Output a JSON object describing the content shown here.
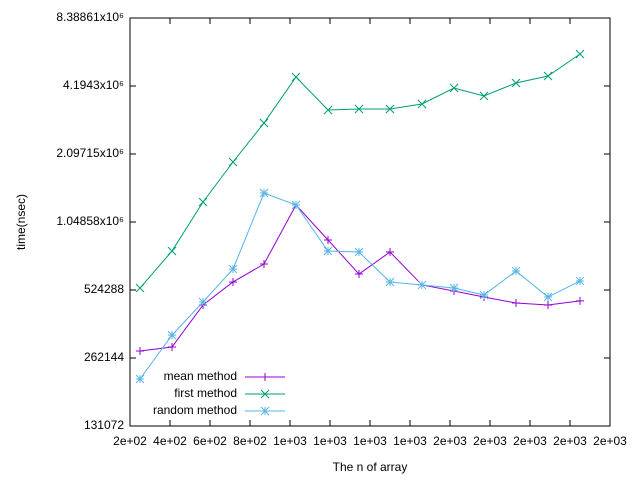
{
  "chart_data": {
    "type": "line",
    "x_label": "The n of array",
    "y_label": "time(nsec)",
    "yscale": "log",
    "legend": "lower left",
    "xlim": [
      200,
      2600
    ],
    "xticks": [
      {
        "value": 200,
        "label": "2e+02"
      },
      {
        "value": 400,
        "label": "4e+02"
      },
      {
        "value": 600,
        "label": "6e+02"
      },
      {
        "value": 800,
        "label": "8e+02"
      },
      {
        "value": 1000,
        "label": "1e+03"
      },
      {
        "value": 1200,
        "label": "1e+03"
      },
      {
        "value": 1400,
        "label": "1e+03"
      },
      {
        "value": 1600,
        "label": "1e+03"
      },
      {
        "value": 1800,
        "label": "2e+03"
      },
      {
        "value": 2000,
        "label": "2e+03"
      },
      {
        "value": 2200,
        "label": "2e+03"
      },
      {
        "value": 2400,
        "label": "2e+03"
      },
      {
        "value": 2600,
        "label": "2e+03"
      }
    ],
    "ylim": [
      131072,
      8388608
    ],
    "yticks": [
      131072,
      262144,
      524288,
      {
        "value": 1048576,
        "label": "1.04858x10⁶"
      },
      {
        "value": 2097152,
        "label": "2.09715x10⁶"
      },
      {
        "value": 4194304,
        "label": "4.1943x10⁶"
      },
      {
        "value": 8388608,
        "label": "8.38861x10⁶"
      }
    ],
    "x": [
      250,
      410,
      565,
      715,
      870,
      1030,
      1190,
      1345,
      1500,
      1660,
      1820,
      1970,
      2130,
      2290,
      2450
    ],
    "series": [
      {
        "name": "mean method",
        "color": "#9400d3",
        "marker": "plus",
        "values": [
          281500,
          293200,
          450000,
          569000,
          683000,
          1247000,
          873000,
          617000,
          772000,
          552000,
          519000,
          488000,
          459000,
          450000,
          469000
        ]
      },
      {
        "name": "first method",
        "color": "#009e73",
        "marker": "cross",
        "values": [
          535000,
          780000,
          1286000,
          1933000,
          2876000,
          4597000,
          3284000,
          3317000,
          3317000,
          3492000,
          4110000,
          3788000,
          4325000,
          4643000,
          5813000
        ]
      },
      {
        "name": "random method",
        "color": "#56b4e9",
        "marker": "star",
        "values": [
          211600,
          331000,
          464000,
          649000,
          1409000,
          1247000,
          780000,
          772000,
          569000,
          552000,
          535000,
          498000,
          636000,
          488000,
          575000
        ]
      }
    ]
  }
}
